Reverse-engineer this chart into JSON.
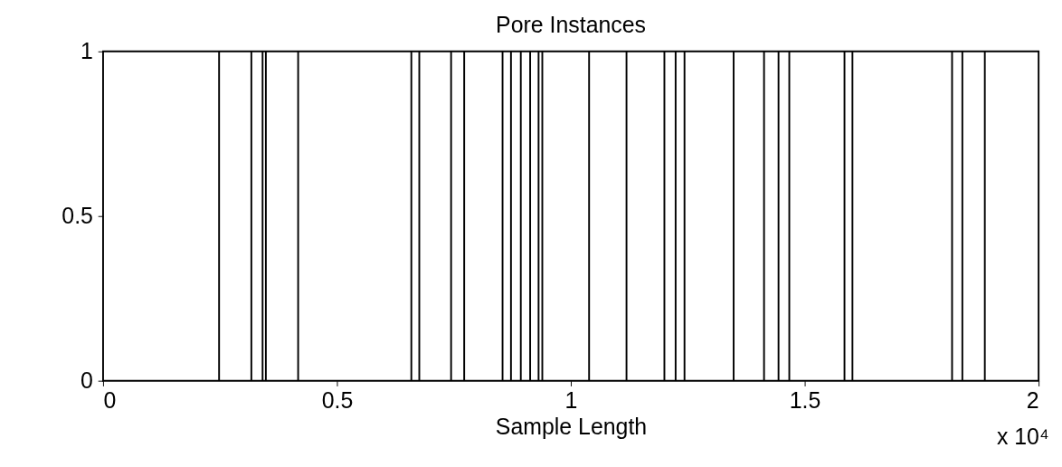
{
  "chart_data": {
    "type": "bar",
    "title": "Pore Instances",
    "xlabel": "Sample Length",
    "x": [
      0.248,
      0.317,
      0.341,
      0.348,
      0.417,
      0.659,
      0.676,
      0.744,
      0.772,
      0.854,
      0.872,
      0.893,
      0.913,
      0.931,
      0.939,
      1.039,
      1.119,
      1.2,
      1.224,
      1.243,
      1.348,
      1.413,
      1.444,
      1.467,
      1.585,
      1.602,
      1.815,
      1.837,
      1.885
    ],
    "values": [
      1,
      1,
      1,
      1,
      1,
      1,
      1,
      1,
      1,
      1,
      1,
      1,
      1,
      1,
      1,
      1,
      1,
      1,
      1,
      1,
      1,
      1,
      1,
      1,
      1,
      1,
      1,
      1,
      1
    ],
    "color": "#000000",
    "xlim": [
      0,
      2
    ],
    "xticks": [
      0,
      0.5,
      1,
      1.5,
      2
    ],
    "ylim": [
      0,
      1
    ],
    "yticks": [
      0,
      0.5,
      1
    ],
    "annotations": [
      "x 10⁴"
    ],
    "grid": false
  }
}
